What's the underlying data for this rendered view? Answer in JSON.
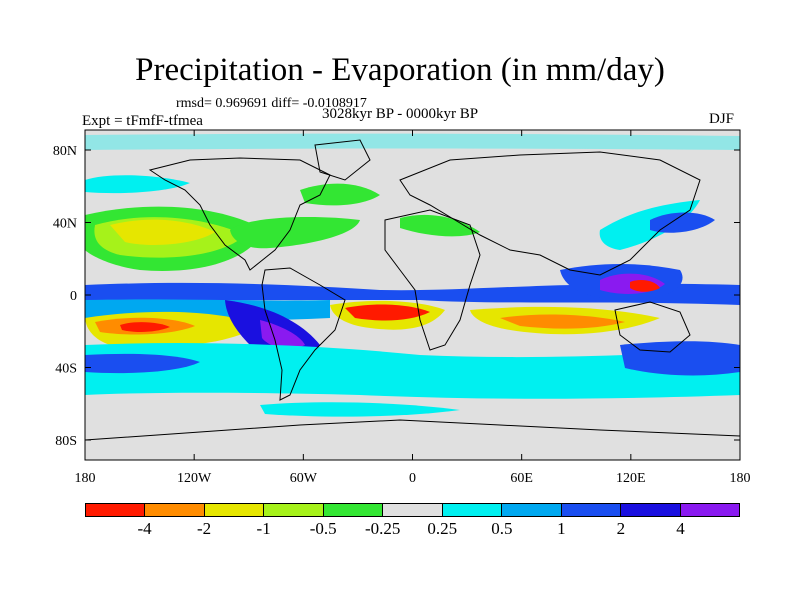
{
  "title": "Precipitation - Evaporation (in mm/day)",
  "stats": "rmsd= 0.969691  diff= -0.0108917",
  "period": "3028kyr BP - 0000kyr BP",
  "experiment": "Expt = tFmfF-tfmea",
  "season": "DJF",
  "lat_ticks": [
    "80N",
    "40N",
    "0",
    "40S",
    "80S"
  ],
  "lon_ticks": [
    "180",
    "120W",
    "60W",
    "0",
    "60E",
    "120E",
    "180"
  ],
  "colorbar": {
    "labels": [
      "-4",
      "-2",
      "-1",
      "-0.5",
      "-0.25",
      "0.25",
      "0.5",
      "1",
      "2",
      "4"
    ],
    "colors": [
      "#ff1a00",
      "#ff8c00",
      "#e6e600",
      "#a6f21a",
      "#33e633",
      "#e0e0e0",
      "#00f0f0",
      "#00a8f0",
      "#1a4ef0",
      "#1a10e0",
      "#8a1af0"
    ]
  }
}
